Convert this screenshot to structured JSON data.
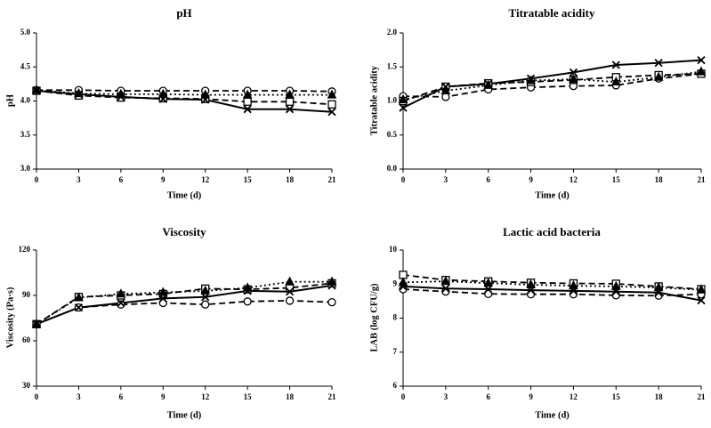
{
  "chart_data": [
    {
      "type": "line",
      "title": "pH",
      "xlabel": "Time (d)",
      "ylabel": "pH",
      "x": [
        0,
        3,
        6,
        9,
        12,
        15,
        18,
        21
      ],
      "xticks": [
        0,
        3,
        6,
        9,
        12,
        15,
        18,
        21
      ],
      "ylim": [
        3.0,
        5.0
      ],
      "yticks": [
        3.0,
        3.5,
        4.0,
        4.5,
        5.0
      ],
      "ytick_labels": [
        "3.0",
        "3.5",
        "4.0",
        "4.5",
        "5.0"
      ],
      "series": [
        {
          "name": "circle",
          "marker": "circle",
          "style": "dashed",
          "values": [
            4.16,
            4.16,
            4.15,
            4.15,
            4.15,
            4.15,
            4.15,
            4.14
          ]
        },
        {
          "name": "square",
          "marker": "square",
          "style": "dashed",
          "values": [
            4.15,
            4.08,
            4.05,
            4.04,
            4.03,
            3.99,
            3.99,
            3.95
          ]
        },
        {
          "name": "triangle",
          "marker": "triangle",
          "style": "dotted",
          "values": [
            4.16,
            4.11,
            4.1,
            4.1,
            4.09,
            4.09,
            4.09,
            4.09
          ]
        },
        {
          "name": "cross",
          "marker": "cross",
          "style": "solid",
          "values": [
            4.15,
            4.1,
            4.06,
            4.03,
            4.02,
            3.88,
            3.88,
            3.84
          ]
        }
      ]
    },
    {
      "type": "line",
      "title": "Titratable acidity",
      "xlabel": "Time (d)",
      "ylabel": "Titratable acidity",
      "x": [
        0,
        3,
        6,
        9,
        12,
        15,
        18,
        21
      ],
      "xticks": [
        0,
        3,
        6,
        9,
        12,
        15,
        18,
        21
      ],
      "ylim": [
        0.0,
        2.0
      ],
      "yticks": [
        0.0,
        0.5,
        1.0,
        1.5,
        2.0
      ],
      "ytick_labels": [
        "0.0",
        "0.5",
        "1.0",
        "1.5",
        "2.0"
      ],
      "series": [
        {
          "name": "circle",
          "marker": "circle",
          "style": "dashed",
          "values": [
            1.07,
            1.06,
            1.17,
            1.2,
            1.22,
            1.23,
            1.33,
            1.4
          ]
        },
        {
          "name": "square",
          "marker": "square",
          "style": "dashed",
          "values": [
            1.0,
            1.21,
            1.26,
            1.28,
            1.31,
            1.35,
            1.38,
            1.4
          ]
        },
        {
          "name": "triangle",
          "marker": "triangle",
          "style": "dotted",
          "values": [
            1.02,
            1.15,
            1.23,
            1.3,
            1.32,
            1.28,
            1.35,
            1.43
          ]
        },
        {
          "name": "cross",
          "marker": "cross",
          "style": "solid",
          "values": [
            0.9,
            1.21,
            1.25,
            1.33,
            1.42,
            1.53,
            1.56,
            1.6
          ]
        }
      ]
    },
    {
      "type": "line",
      "title": "Viscosity",
      "xlabel": "Time (d)",
      "ylabel": "Viscosity  (Pa·s)",
      "x": [
        0,
        3,
        6,
        9,
        12,
        15,
        18,
        21
      ],
      "xticks": [
        0,
        3,
        6,
        9,
        12,
        15,
        18,
        21
      ],
      "ylim": [
        30,
        120
      ],
      "yticks": [
        30,
        60,
        90,
        120
      ],
      "ytick_labels": [
        "30",
        "60",
        "90",
        "120"
      ],
      "series": [
        {
          "name": "circle",
          "marker": "circle",
          "style": "dashed",
          "values": [
            71,
            82,
            84,
            85,
            84,
            86,
            86.5,
            85.5
          ]
        },
        {
          "name": "square",
          "marker": "square",
          "style": "dashed",
          "values": [
            71,
            89,
            90,
            91,
            94.5,
            94,
            95,
            98
          ]
        },
        {
          "name": "triangle",
          "marker": "triangle",
          "style": "dotted",
          "values": [
            71,
            88.5,
            91,
            92,
            93,
            95,
            99,
            99
          ]
        },
        {
          "name": "cross",
          "marker": "cross",
          "style": "solid",
          "values": [
            71,
            82,
            85,
            88,
            89,
            93,
            92.5,
            96.5
          ]
        }
      ]
    },
    {
      "type": "line",
      "title": "Lactic acid bacteria",
      "xlabel": "Time (d)",
      "ylabel": "LAB (log CFU/g)",
      "x": [
        0,
        3,
        6,
        9,
        12,
        15,
        18,
        21
      ],
      "xticks": [
        0,
        3,
        6,
        9,
        12,
        15,
        18,
        21
      ],
      "ylim": [
        6,
        10
      ],
      "yticks": [
        6,
        7,
        8,
        9,
        10
      ],
      "ytick_labels": [
        "6",
        "7",
        "8",
        "9",
        "10"
      ],
      "series": [
        {
          "name": "circle",
          "marker": "circle",
          "style": "dashed",
          "values": [
            8.85,
            8.78,
            8.71,
            8.7,
            8.7,
            8.67,
            8.66,
            8.7
          ]
        },
        {
          "name": "square",
          "marker": "square",
          "style": "dashed",
          "values": [
            9.27,
            9.12,
            9.08,
            9.04,
            9.02,
            9.01,
            8.93,
            8.85
          ]
        },
        {
          "name": "triangle",
          "marker": "triangle",
          "style": "dotted",
          "values": [
            9.05,
            9.08,
            9.03,
            8.98,
            8.95,
            8.93,
            8.9,
            8.83
          ]
        },
        {
          "name": "cross",
          "marker": "cross",
          "style": "solid",
          "values": [
            8.93,
            8.87,
            8.85,
            8.82,
            8.8,
            8.78,
            8.75,
            8.52
          ]
        }
      ]
    }
  ]
}
